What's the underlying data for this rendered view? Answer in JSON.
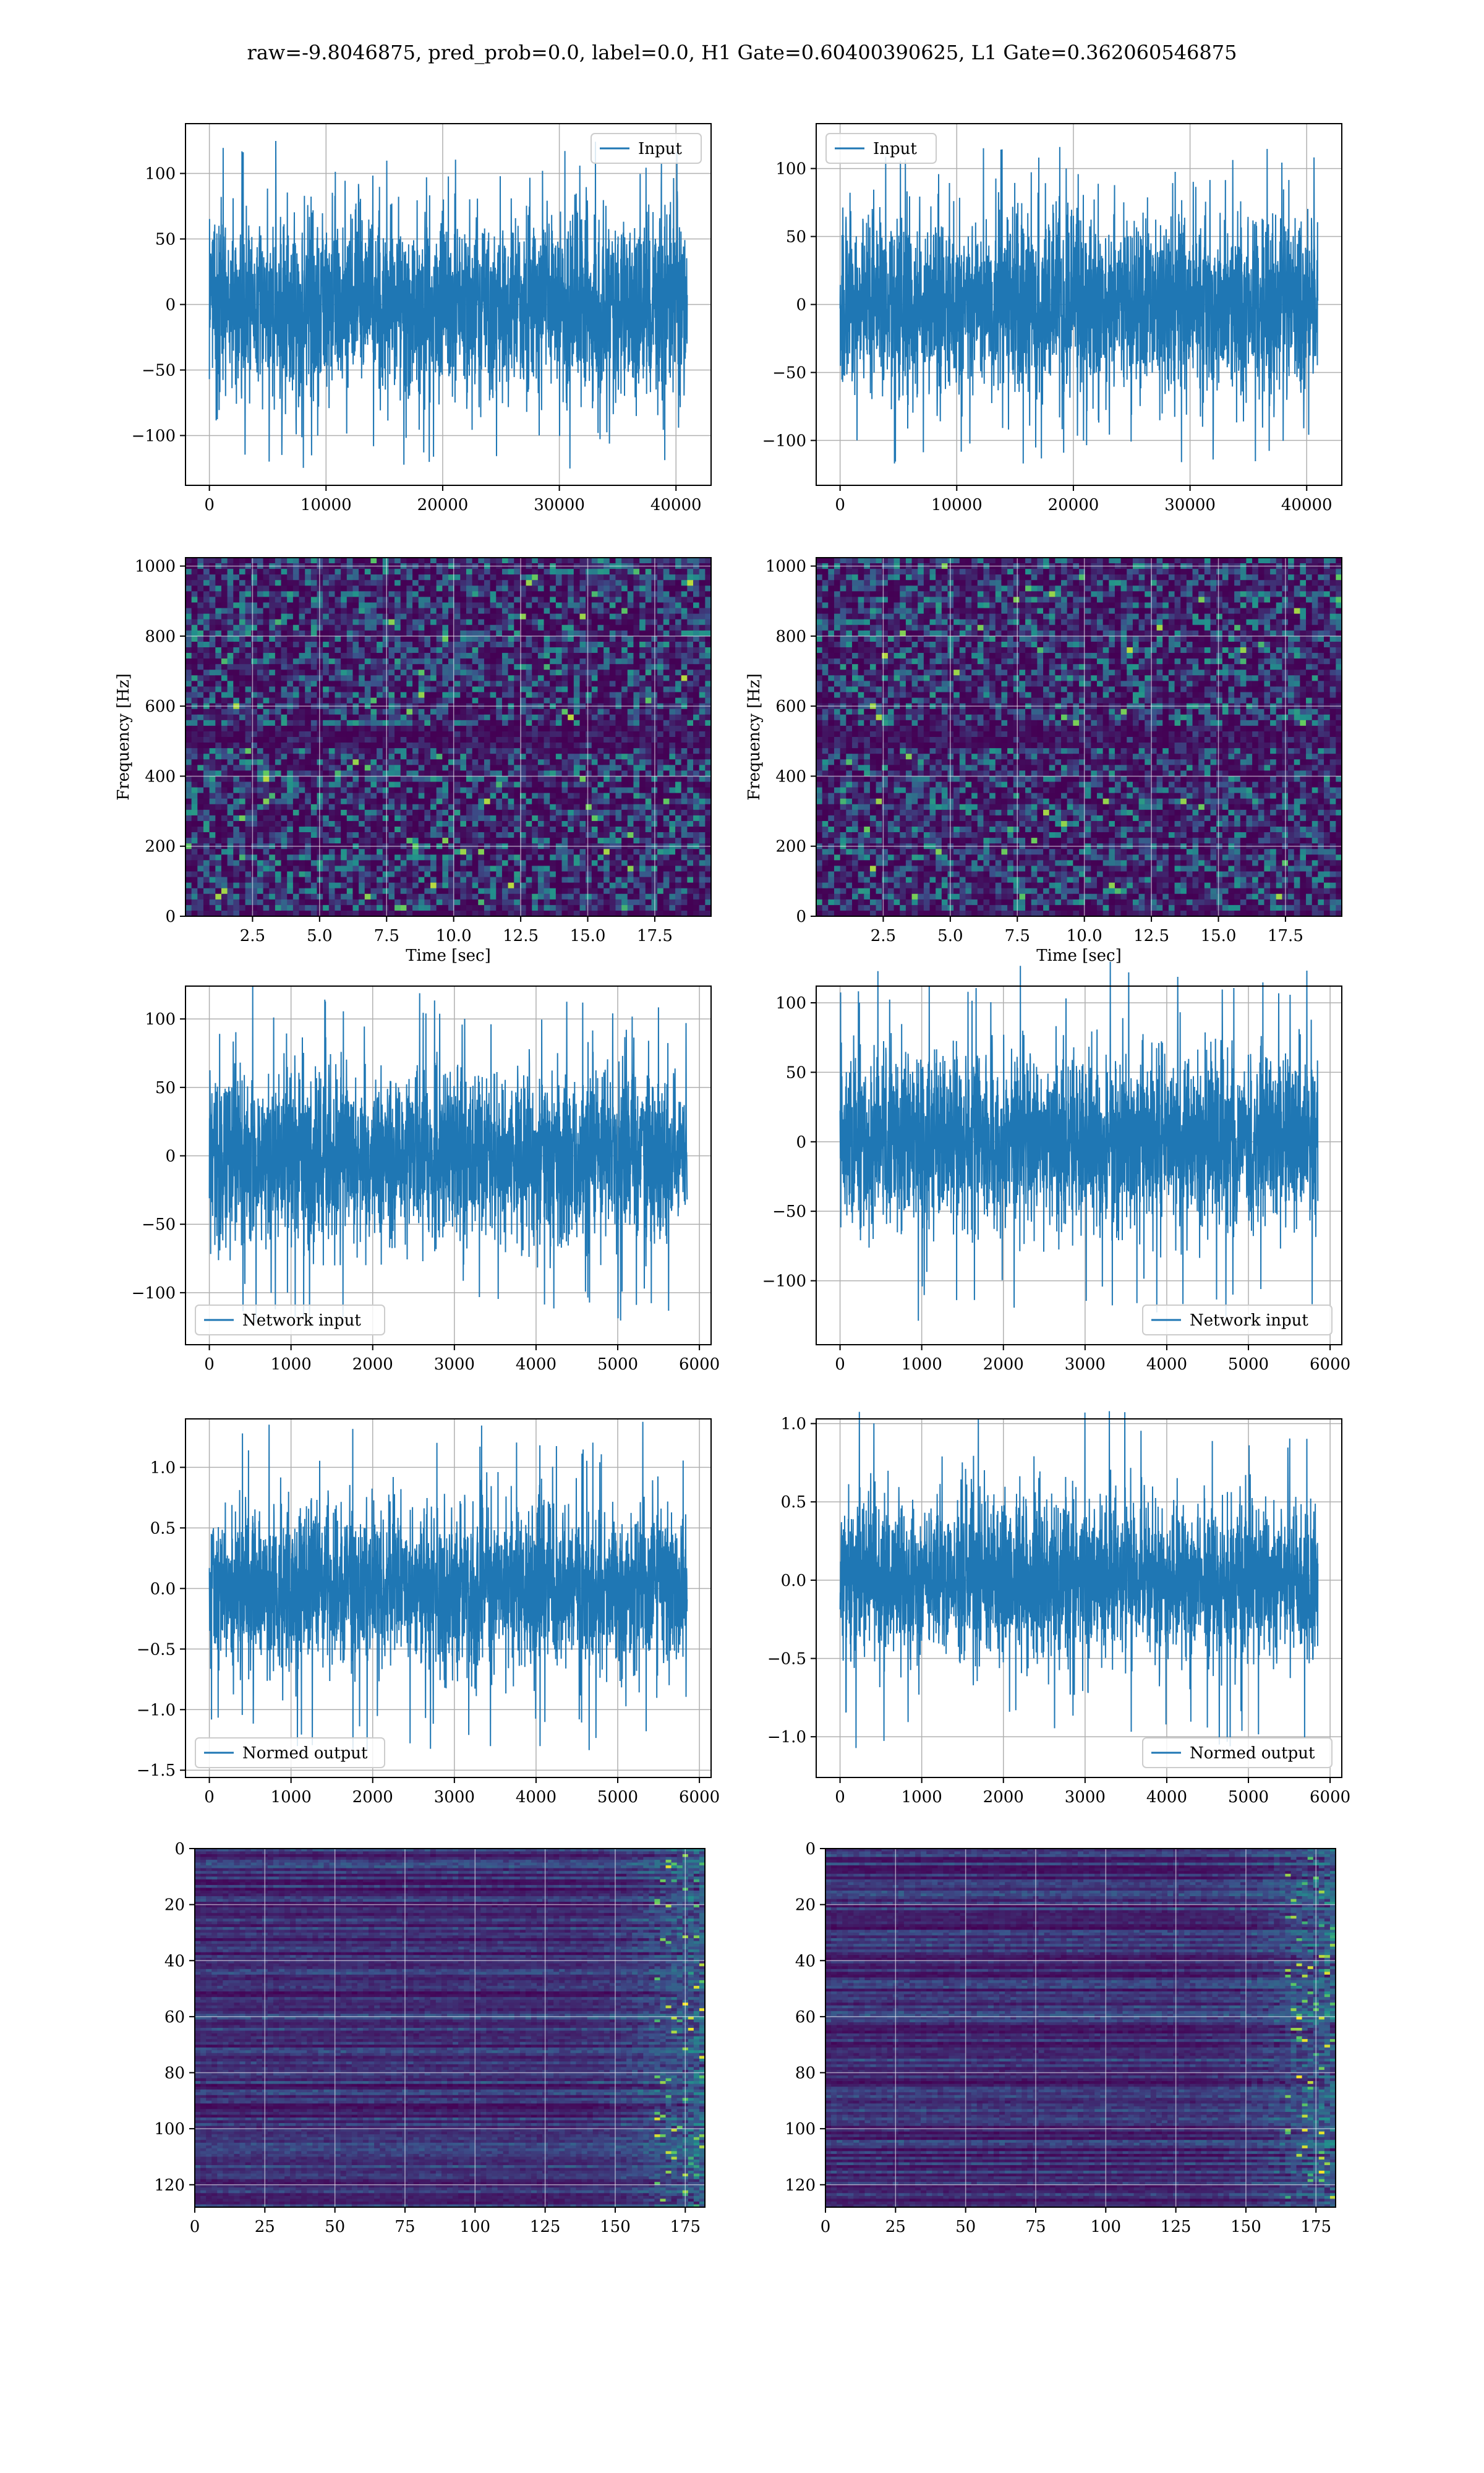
{
  "figure": {
    "title": "raw=-9.8046875, pred_prob=0.0, label=0.0, H1 Gate=0.60400390625, L1 Gate=0.362060546875"
  },
  "colors": {
    "line": "#1f77b4",
    "viridis_low": "#440154",
    "viridis_mid": "#21918c",
    "viridis_high": "#fde725"
  },
  "chart_data": [
    {
      "id": "h1-input",
      "type": "line",
      "signal": "noise",
      "x_range": [
        0,
        40960
      ],
      "y_amplitude": 35,
      "y_extreme": 128,
      "xlim": [
        -2048,
        43008
      ],
      "ylim": [
        -138,
        138
      ],
      "xticks": [
        0,
        10000,
        20000,
        30000,
        40000
      ],
      "xtick_labels": [
        "0",
        "10000",
        "20000",
        "30000",
        "40000"
      ],
      "yticks": [
        -100,
        -50,
        0,
        50,
        100
      ],
      "ytick_labels": [
        "−100",
        "−50",
        "0",
        "50",
        "100"
      ],
      "series": [
        {
          "name": "Input"
        }
      ],
      "legend": "upper right",
      "grid": true
    },
    {
      "id": "l1-input",
      "type": "line",
      "signal": "noise",
      "x_range": [
        0,
        40960
      ],
      "y_amplitude": 33,
      "y_extreme": 118,
      "xlim": [
        -2048,
        43008
      ],
      "ylim": [
        -133,
        133
      ],
      "xticks": [
        0,
        10000,
        20000,
        30000,
        40000
      ],
      "xtick_labels": [
        "0",
        "10000",
        "20000",
        "30000",
        "40000"
      ],
      "yticks": [
        -100,
        -50,
        0,
        50,
        100
      ],
      "ytick_labels": [
        "−100",
        "−50",
        "0",
        "50",
        "100"
      ],
      "series": [
        {
          "name": "Input"
        }
      ],
      "legend": "upper left",
      "grid": true
    },
    {
      "id": "h1-spectrogram",
      "type": "heatmap",
      "xlim": [
        0,
        19.6
      ],
      "ylim": [
        0,
        1024
      ],
      "xticks": [
        2.5,
        5.0,
        7.5,
        10.0,
        12.5,
        15.0,
        17.5
      ],
      "xtick_labels": [
        "2.5",
        "5.0",
        "7.5",
        "10.0",
        "12.5",
        "15.0",
        "17.5"
      ],
      "yticks": [
        0,
        200,
        400,
        600,
        800,
        1000
      ],
      "ytick_labels": [
        "0",
        "200",
        "400",
        "600",
        "800",
        "1000"
      ],
      "xlabel": "Time [sec]",
      "ylabel": "Frequency [Hz]",
      "colormap": "viridis",
      "grid": true
    },
    {
      "id": "l1-spectrogram",
      "type": "heatmap",
      "xlim": [
        0,
        19.6
      ],
      "ylim": [
        0,
        1024
      ],
      "xticks": [
        2.5,
        5.0,
        7.5,
        10.0,
        12.5,
        15.0,
        17.5
      ],
      "xtick_labels": [
        "2.5",
        "5.0",
        "7.5",
        "10.0",
        "12.5",
        "15.0",
        "17.5"
      ],
      "yticks": [
        0,
        200,
        400,
        600,
        800,
        1000
      ],
      "ytick_labels": [
        "0",
        "200",
        "400",
        "600",
        "800",
        "1000"
      ],
      "xlabel": "Time [sec]",
      "ylabel": "Frequency [Hz]",
      "colormap": "viridis",
      "grid": true
    },
    {
      "id": "h1-network-input",
      "type": "line",
      "signal": "noise",
      "x_range": [
        0,
        5850
      ],
      "y_amplitude": 32,
      "y_extreme": 125,
      "xlim": [
        -292,
        6143
      ],
      "ylim": [
        -138,
        124
      ],
      "xticks": [
        0,
        1000,
        2000,
        3000,
        4000,
        5000,
        6000
      ],
      "xtick_labels": [
        "0",
        "1000",
        "2000",
        "3000",
        "4000",
        "5000",
        "6000"
      ],
      "yticks": [
        -100,
        -50,
        0,
        50,
        100
      ],
      "ytick_labels": [
        "−100",
        "−50",
        "0",
        "50",
        "100"
      ],
      "series": [
        {
          "name": "Network input"
        }
      ],
      "legend": "lower left",
      "grid": true
    },
    {
      "id": "l1-network-input",
      "type": "line",
      "signal": "noise",
      "x_range": [
        0,
        5850
      ],
      "y_amplitude": 31,
      "y_extreme": 130,
      "xlim": [
        -292,
        6143
      ],
      "ylim": [
        -146,
        112
      ],
      "xticks": [
        0,
        1000,
        2000,
        3000,
        4000,
        5000,
        6000
      ],
      "xtick_labels": [
        "0",
        "1000",
        "2000",
        "3000",
        "4000",
        "5000",
        "6000"
      ],
      "yticks": [
        -100,
        -50,
        0,
        50,
        100
      ],
      "ytick_labels": [
        "−100",
        "−50",
        "0",
        "50",
        "100"
      ],
      "series": [
        {
          "name": "Network input"
        }
      ],
      "legend": "lower right",
      "grid": true
    },
    {
      "id": "h1-normed-output",
      "type": "line",
      "signal": "noise",
      "x_range": [
        0,
        5850
      ],
      "y_amplitude": 0.33,
      "y_extreme": 1.4,
      "xlim": [
        -292,
        6143
      ],
      "ylim": [
        -1.56,
        1.4
      ],
      "xticks": [
        0,
        1000,
        2000,
        3000,
        4000,
        5000,
        6000
      ],
      "xtick_labels": [
        "0",
        "1000",
        "2000",
        "3000",
        "4000",
        "5000",
        "6000"
      ],
      "yticks": [
        -1.5,
        -1.0,
        -0.5,
        0.0,
        0.5,
        1.0
      ],
      "ytick_labels": [
        "−1.5",
        "−1.0",
        "−0.5",
        "0.0",
        "0.5",
        "1.0"
      ],
      "series": [
        {
          "name": "Normed output"
        }
      ],
      "legend": "lower left",
      "grid": true
    },
    {
      "id": "l1-normed-output",
      "type": "line",
      "signal": "noise",
      "x_range": [
        0,
        5850
      ],
      "y_amplitude": 0.25,
      "y_extreme": 1.1,
      "xlim": [
        -292,
        6143
      ],
      "ylim": [
        -1.26,
        1.03
      ],
      "xticks": [
        0,
        1000,
        2000,
        3000,
        4000,
        5000,
        6000
      ],
      "xtick_labels": [
        "0",
        "1000",
        "2000",
        "3000",
        "4000",
        "5000",
        "6000"
      ],
      "yticks": [
        -1.0,
        -0.5,
        0.0,
        0.5,
        1.0
      ],
      "ytick_labels": [
        "−1.0",
        "−0.5",
        "0.0",
        "0.5",
        "1.0"
      ],
      "series": [
        {
          "name": "Normed output"
        }
      ],
      "legend": "lower right",
      "grid": true
    },
    {
      "id": "h1-feature-map",
      "type": "heatmap",
      "xlim": [
        0,
        182
      ],
      "ylim": [
        128,
        0
      ],
      "xticks": [
        0,
        25,
        50,
        75,
        100,
        125,
        150,
        175
      ],
      "xtick_labels": [
        "0",
        "25",
        "50",
        "75",
        "100",
        "125",
        "150",
        "175"
      ],
      "yticks": [
        0,
        20,
        40,
        60,
        80,
        100,
        120
      ],
      "ytick_labels": [
        "0",
        "20",
        "40",
        "60",
        "80",
        "100",
        "120"
      ],
      "colormap": "viridis",
      "grid": true
    },
    {
      "id": "l1-feature-map",
      "type": "heatmap",
      "xlim": [
        0,
        182
      ],
      "ylim": [
        128,
        0
      ],
      "xticks": [
        0,
        25,
        50,
        75,
        100,
        125,
        150,
        175
      ],
      "xtick_labels": [
        "0",
        "25",
        "50",
        "75",
        "100",
        "125",
        "150",
        "175"
      ],
      "yticks": [
        0,
        20,
        40,
        60,
        80,
        100,
        120
      ],
      "ytick_labels": [
        "0",
        "20",
        "40",
        "60",
        "80",
        "100",
        "120"
      ],
      "colormap": "viridis",
      "grid": true
    }
  ]
}
